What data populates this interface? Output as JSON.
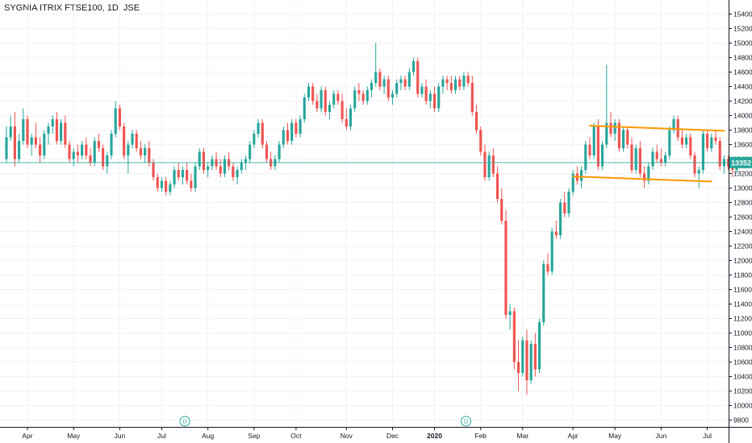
{
  "header": {
    "title": "SYGNIA ITRIX FTSE100, 1D, JSE"
  },
  "colors": {
    "up": "#26a69a",
    "down": "#ef5350",
    "trendline": "#ff9800",
    "price_line": "#26a69a",
    "grid": "#f0f3fa"
  },
  "icons": [
    "dividend-marker-icon",
    "dividend-marker-icon"
  ],
  "chart_data": {
    "type": "candlestick",
    "title": "SYGNIA ITRIX FTSE100, 1D, JSE",
    "ylim": [
      9700,
      15600
    ],
    "y_ticks": [
      9800,
      10000,
      10200,
      10400,
      10600,
      10800,
      11000,
      11200,
      11400,
      11600,
      11800,
      12000,
      12200,
      12400,
      12600,
      12800,
      13000,
      13200,
      13400,
      13600,
      13800,
      14000,
      14200,
      14400,
      14600,
      14800,
      15000,
      15200,
      15400
    ],
    "x_labels": [
      {
        "label": "Apr",
        "t": 5,
        "bold": false
      },
      {
        "label": "May",
        "t": 16,
        "bold": false
      },
      {
        "label": "Jun",
        "t": 27,
        "bold": false
      },
      {
        "label": "Jul",
        "t": 37,
        "bold": false
      },
      {
        "label": "Aug",
        "t": 48,
        "bold": false
      },
      {
        "label": "Sep",
        "t": 59,
        "bold": false
      },
      {
        "label": "Oct",
        "t": 69,
        "bold": false
      },
      {
        "label": "Nov",
        "t": 81,
        "bold": false
      },
      {
        "label": "Dec",
        "t": 92,
        "bold": false
      },
      {
        "label": "2020",
        "t": 102,
        "bold": true
      },
      {
        "label": "Feb",
        "t": 113,
        "bold": false
      },
      {
        "label": "Mar",
        "t": 123,
        "bold": false
      },
      {
        "label": "Apr",
        "t": 135,
        "bold": false
      },
      {
        "label": "May",
        "t": 145,
        "bold": false
      },
      {
        "label": "Jun",
        "t": 156,
        "bold": false
      },
      {
        "label": "Jul",
        "t": 167,
        "bold": false
      }
    ],
    "dividend_markers": [
      {
        "t": 42.5,
        "label": "D"
      },
      {
        "t": 109.5,
        "label": "D"
      }
    ],
    "last_price": 13352,
    "last_price_label": "13352",
    "trendlines": [
      {
        "t1": 139,
        "v1": 13860,
        "t2": 171,
        "v2": 13790
      },
      {
        "t1": 135,
        "v1": 13160,
        "t2": 168,
        "v2": 13090
      }
    ],
    "candles": [
      [
        13400,
        13850,
        13350,
        13700
      ],
      [
        13700,
        14000,
        13650,
        13850
      ],
      [
        13850,
        14050,
        13300,
        13400
      ],
      [
        13400,
        13750,
        13350,
        13650
      ],
      [
        13650,
        14100,
        13600,
        13950
      ],
      [
        13950,
        14000,
        13550,
        13600
      ],
      [
        13600,
        13750,
        13450,
        13700
      ],
      [
        13700,
        13900,
        13550,
        13600
      ],
      [
        13600,
        13700,
        13350,
        13450
      ],
      [
        13450,
        13800,
        13400,
        13750
      ],
      [
        13750,
        13900,
        13600,
        13850
      ],
      [
        13850,
        14000,
        13750,
        13950
      ],
      [
        13950,
        14050,
        13600,
        13650
      ],
      [
        13650,
        13950,
        13600,
        13900
      ],
      [
        13900,
        14000,
        13550,
        13600
      ],
      [
        13600,
        13650,
        13350,
        13400
      ],
      [
        13400,
        13550,
        13300,
        13500
      ],
      [
        13500,
        13600,
        13350,
        13450
      ],
      [
        13450,
        13650,
        13400,
        13600
      ],
      [
        13600,
        13700,
        13400,
        13450
      ],
      [
        13450,
        13550,
        13300,
        13350
      ],
      [
        13350,
        13700,
        13300,
        13650
      ],
      [
        13650,
        13750,
        13500,
        13550
      ],
      [
        13550,
        13600,
        13250,
        13300
      ],
      [
        13300,
        13500,
        13200,
        13450
      ],
      [
        13450,
        13800,
        13400,
        13750
      ],
      [
        13750,
        14200,
        13700,
        14100
      ],
      [
        14100,
        14150,
        13800,
        13850
      ],
      [
        13850,
        13900,
        13400,
        13450
      ],
      [
        13450,
        13650,
        13200,
        13600
      ],
      [
        13600,
        13800,
        13550,
        13750
      ],
      [
        13750,
        13800,
        13500,
        13550
      ],
      [
        13550,
        13650,
        13400,
        13450
      ],
      [
        13450,
        13600,
        13350,
        13550
      ],
      [
        13550,
        13650,
        13300,
        13350
      ],
      [
        13350,
        13400,
        13100,
        13150
      ],
      [
        13150,
        13200,
        12950,
        13000
      ],
      [
        13000,
        13150,
        12950,
        13100
      ],
      [
        13100,
        13150,
        12900,
        12950
      ],
      [
        12950,
        13100,
        12900,
        13050
      ],
      [
        13050,
        13300,
        13000,
        13250
      ],
      [
        13250,
        13350,
        13100,
        13150
      ],
      [
        13150,
        13300,
        13050,
        13250
      ],
      [
        13250,
        13350,
        13050,
        13100
      ],
      [
        13100,
        13200,
        12950,
        13000
      ],
      [
        13000,
        13350,
        12950,
        13300
      ],
      [
        13300,
        13550,
        13250,
        13500
      ],
      [
        13500,
        13550,
        13200,
        13250
      ],
      [
        13250,
        13350,
        13150,
        13300
      ],
      [
        13300,
        13450,
        13250,
        13400
      ],
      [
        13400,
        13500,
        13250,
        13300
      ],
      [
        13300,
        13400,
        13150,
        13200
      ],
      [
        13200,
        13450,
        13150,
        13400
      ],
      [
        13400,
        13500,
        13250,
        13300
      ],
      [
        13300,
        13350,
        13100,
        13150
      ],
      [
        13150,
        13300,
        13050,
        13250
      ],
      [
        13250,
        13400,
        13200,
        13350
      ],
      [
        13350,
        13450,
        13250,
        13400
      ],
      [
        13400,
        13650,
        13350,
        13600
      ],
      [
        13600,
        13800,
        13550,
        13750
      ],
      [
        13750,
        13950,
        13700,
        13900
      ],
      [
        13900,
        13950,
        13550,
        13600
      ],
      [
        13600,
        13650,
        13350,
        13400
      ],
      [
        13400,
        13500,
        13250,
        13300
      ],
      [
        13300,
        13450,
        13250,
        13400
      ],
      [
        13400,
        13650,
        13350,
        13600
      ],
      [
        13600,
        13850,
        13550,
        13800
      ],
      [
        13800,
        13900,
        13600,
        13650
      ],
      [
        13650,
        13950,
        13600,
        13900
      ],
      [
        13900,
        13950,
        13700,
        13750
      ],
      [
        13750,
        14000,
        13700,
        13950
      ],
      [
        13950,
        14300,
        13900,
        14250
      ],
      [
        14250,
        14450,
        14200,
        14400
      ],
      [
        14400,
        14450,
        14150,
        14200
      ],
      [
        14200,
        14300,
        14050,
        14100
      ],
      [
        14100,
        14400,
        14050,
        14350
      ],
      [
        14350,
        14400,
        14000,
        14050
      ],
      [
        14050,
        14200,
        13950,
        14150
      ],
      [
        14150,
        14350,
        14100,
        14300
      ],
      [
        14300,
        14350,
        14150,
        14200
      ],
      [
        14200,
        14300,
        13900,
        13950
      ],
      [
        13950,
        14100,
        13800,
        13850
      ],
      [
        13850,
        14150,
        13800,
        14100
      ],
      [
        14100,
        14400,
        14050,
        14350
      ],
      [
        14350,
        14450,
        14200,
        14300
      ],
      [
        14300,
        14350,
        14150,
        14200
      ],
      [
        14200,
        14400,
        14150,
        14350
      ],
      [
        14350,
        14500,
        14250,
        14450
      ],
      [
        14450,
        15000,
        14400,
        14600
      ],
      [
        14600,
        14650,
        14350,
        14400
      ],
      [
        14400,
        14550,
        14300,
        14500
      ],
      [
        14500,
        14550,
        14200,
        14250
      ],
      [
        14250,
        14350,
        14150,
        14300
      ],
      [
        14300,
        14500,
        14250,
        14450
      ],
      [
        14450,
        14550,
        14350,
        14500
      ],
      [
        14500,
        14550,
        14350,
        14400
      ],
      [
        14400,
        14650,
        14350,
        14600
      ],
      [
        14600,
        14800,
        14550,
        14750
      ],
      [
        14750,
        14800,
        14250,
        14300
      ],
      [
        14300,
        14450,
        14250,
        14400
      ],
      [
        14400,
        14500,
        14150,
        14200
      ],
      [
        14200,
        14350,
        14100,
        14300
      ],
      [
        14300,
        14400,
        14050,
        14100
      ],
      [
        14100,
        14450,
        14050,
        14400
      ],
      [
        14400,
        14550,
        14300,
        14500
      ],
      [
        14500,
        14550,
        14350,
        14450
      ],
      [
        14450,
        14550,
        14300,
        14350
      ],
      [
        14350,
        14550,
        14300,
        14500
      ],
      [
        14500,
        14550,
        14350,
        14400
      ],
      [
        14400,
        14600,
        14350,
        14550
      ],
      [
        14550,
        14600,
        14400,
        14450
      ],
      [
        14450,
        14550,
        14000,
        14050
      ],
      [
        14050,
        14150,
        13750,
        13800
      ],
      [
        13800,
        13850,
        13450,
        13500
      ],
      [
        13500,
        13600,
        13100,
        13150
      ],
      [
        13150,
        13500,
        13100,
        13450
      ],
      [
        13450,
        13550,
        13150,
        13200
      ],
      [
        13200,
        13300,
        12800,
        12850
      ],
      [
        12850,
        13000,
        12500,
        12550
      ],
      [
        12550,
        12700,
        11200,
        11250
      ],
      [
        11250,
        11400,
        11050,
        11300
      ],
      [
        11300,
        11350,
        10500,
        10600
      ],
      [
        10600,
        10900,
        10200,
        10450
      ],
      [
        10450,
        10950,
        10400,
        10900
      ],
      [
        10900,
        11050,
        10150,
        10350
      ],
      [
        10350,
        10900,
        10300,
        10850
      ],
      [
        10850,
        11000,
        10400,
        10500
      ],
      [
        10500,
        11200,
        10450,
        11150
      ],
      [
        11150,
        12000,
        11100,
        11950
      ],
      [
        11950,
        12100,
        11800,
        11850
      ],
      [
        11850,
        12450,
        11800,
        12400
      ],
      [
        12400,
        12550,
        12300,
        12350
      ],
      [
        12350,
        12850,
        12300,
        12800
      ],
      [
        12800,
        12950,
        12600,
        12650
      ],
      [
        12650,
        13000,
        12600,
        12950
      ],
      [
        12950,
        13250,
        12900,
        13200
      ],
      [
        13200,
        13300,
        13050,
        13100
      ],
      [
        13100,
        13300,
        13000,
        13250
      ],
      [
        13250,
        13650,
        13200,
        13600
      ],
      [
        13600,
        13700,
        13400,
        13450
      ],
      [
        13450,
        13900,
        13400,
        13850
      ],
      [
        13850,
        13950,
        13250,
        13300
      ],
      [
        13300,
        13650,
        13250,
        13600
      ],
      [
        13600,
        14700,
        13550,
        13900
      ],
      [
        13900,
        14050,
        13700,
        13750
      ],
      [
        13750,
        13950,
        13650,
        13900
      ],
      [
        13900,
        13950,
        13500,
        13550
      ],
      [
        13550,
        13850,
        13500,
        13800
      ],
      [
        13800,
        13850,
        13550,
        13600
      ],
      [
        13600,
        13700,
        13200,
        13250
      ],
      [
        13250,
        13600,
        13200,
        13550
      ],
      [
        13550,
        13650,
        13150,
        13200
      ],
      [
        13200,
        13300,
        13000,
        13100
      ],
      [
        13100,
        13350,
        13050,
        13300
      ],
      [
        13300,
        13550,
        13250,
        13500
      ],
      [
        13500,
        13600,
        13350,
        13400
      ],
      [
        13400,
        13550,
        13300,
        13350
      ],
      [
        13350,
        13500,
        13300,
        13450
      ],
      [
        13450,
        13850,
        13400,
        13800
      ],
      [
        13800,
        14000,
        13750,
        13950
      ],
      [
        13950,
        14000,
        13650,
        13700
      ],
      [
        13700,
        13800,
        13550,
        13600
      ],
      [
        13600,
        13750,
        13550,
        13700
      ],
      [
        13700,
        13750,
        13400,
        13450
      ],
      [
        13450,
        13500,
        13150,
        13200
      ],
      [
        13200,
        13300,
        13000,
        13250
      ],
      [
        13250,
        13800,
        13200,
        13750
      ],
      [
        13750,
        13800,
        13500,
        13550
      ],
      [
        13550,
        13750,
        13500,
        13700
      ],
      [
        13700,
        13800,
        13600,
        13650
      ],
      [
        13650,
        13700,
        13250,
        13300
      ],
      [
        13300,
        13450,
        13200,
        13400
      ],
      [
        13400,
        13450,
        13250,
        13300
      ],
      [
        13300,
        13350,
        13150,
        13250
      ],
      [
        13250,
        13400,
        13200,
        13352
      ]
    ]
  }
}
